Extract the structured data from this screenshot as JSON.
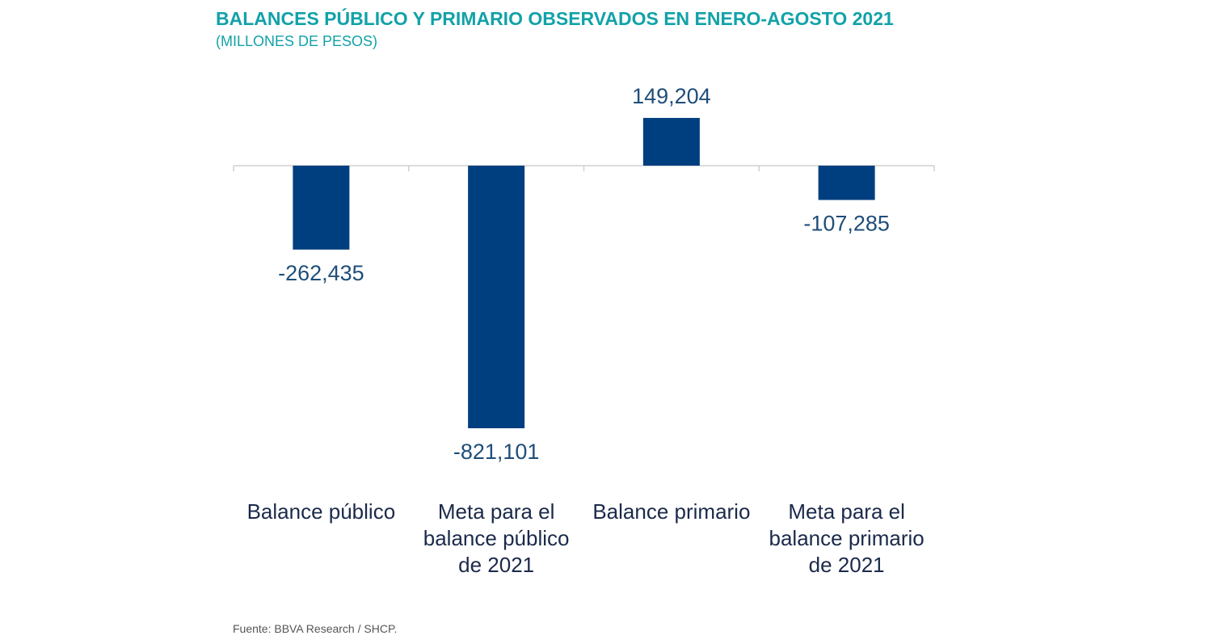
{
  "chart_data": {
    "type": "bar",
    "title": "BALANCES PÚBLICO Y PRIMARIO OBSERVADOS EN ENERO-AGOSTO 2021",
    "subtitle": "(MILLONES DE PESOS)",
    "categories": [
      "Balance público",
      "Meta para el balance público de 2021",
      "Balance primario",
      "Meta para el balance primario de 2021"
    ],
    "category_lines": [
      [
        "Balance público"
      ],
      [
        "Meta para el",
        "balance público",
        "de 2021"
      ],
      [
        "Balance primario"
      ],
      [
        "Meta para el",
        "balance primario",
        "de 2021"
      ]
    ],
    "values": [
      -262435,
      -821101,
      149204,
      -107285
    ],
    "value_labels": [
      "-262,435",
      "-821,101",
      "149,204",
      "-107,285"
    ],
    "xlabel": "",
    "ylabel": "",
    "ylim": [
      -821101,
      149204
    ],
    "grid": false,
    "legend": "none",
    "bar_color": "#003f7f",
    "label_color": "#1f4e79",
    "category_color": "#1b2a4a",
    "axis_color": "#d0d0d0",
    "title_color": "#12a2a8"
  },
  "footer": {
    "source": "Fuente: BBVA Research / SHCP."
  }
}
